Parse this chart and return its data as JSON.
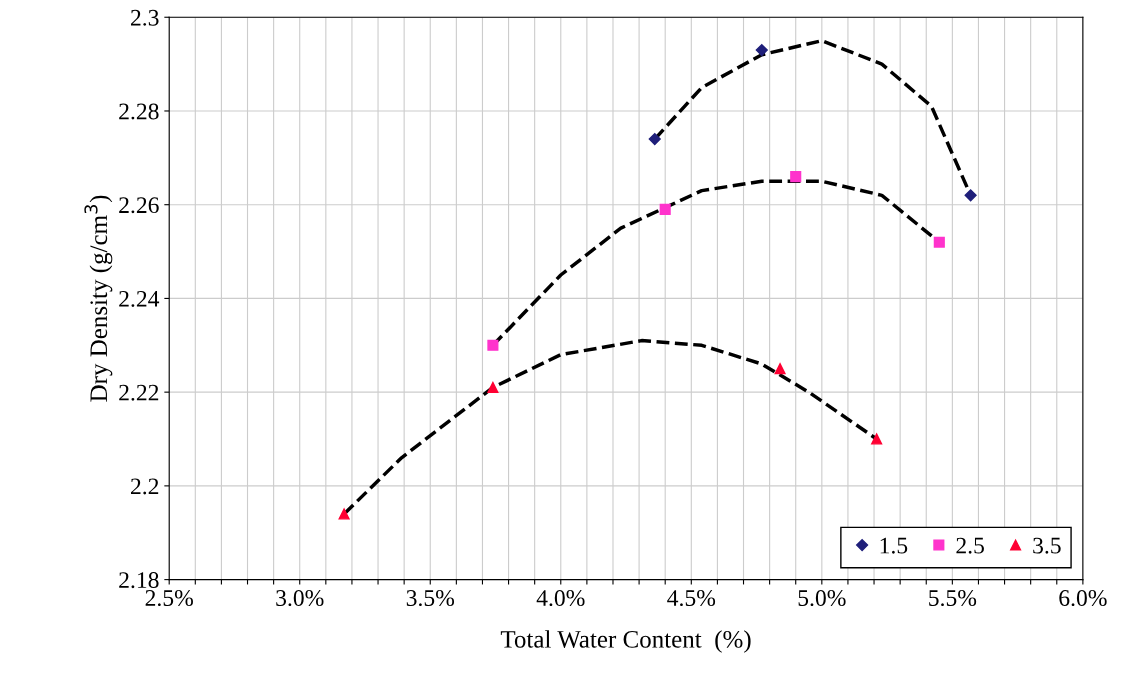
{
  "chart_data": {
    "type": "scatter",
    "xlabel": "Total Water Content  (%)",
    "ylabel": "Dry Density (g/cm$^{3}$)",
    "xlim": [
      2.5,
      6.0
    ],
    "ylim": [
      2.18,
      2.3
    ],
    "xticks": [
      {
        "value": 2.5,
        "label": "2.5%"
      },
      {
        "value": 2.6,
        "label": null
      },
      {
        "value": 2.7,
        "label": null
      },
      {
        "value": 2.8,
        "label": null
      },
      {
        "value": 2.9,
        "label": null
      },
      {
        "value": 3.0,
        "label": "3.0%"
      },
      {
        "value": 3.1,
        "label": null
      },
      {
        "value": 3.2,
        "label": null
      },
      {
        "value": 3.3,
        "label": null
      },
      {
        "value": 3.4,
        "label": null
      },
      {
        "value": 3.5,
        "label": "3.5%"
      },
      {
        "value": 3.6,
        "label": null
      },
      {
        "value": 3.7,
        "label": null
      },
      {
        "value": 3.8,
        "label": null
      },
      {
        "value": 3.9,
        "label": null
      },
      {
        "value": 4.0,
        "label": "4.0%"
      },
      {
        "value": 4.1,
        "label": null
      },
      {
        "value": 4.2,
        "label": null
      },
      {
        "value": 4.3,
        "label": null
      },
      {
        "value": 4.4,
        "label": null
      },
      {
        "value": 4.5,
        "label": "4.5%"
      },
      {
        "value": 4.6,
        "label": null
      },
      {
        "value": 4.7,
        "label": null
      },
      {
        "value": 4.8,
        "label": null
      },
      {
        "value": 4.9,
        "label": null
      },
      {
        "value": 5.0,
        "label": "5.0%"
      },
      {
        "value": 5.1,
        "label": null
      },
      {
        "value": 5.2,
        "label": null
      },
      {
        "value": 5.3,
        "label": null
      },
      {
        "value": 5.4,
        "label": null
      },
      {
        "value": 5.5,
        "label": "5.5%"
      },
      {
        "value": 5.6,
        "label": null
      },
      {
        "value": 5.7,
        "label": null
      },
      {
        "value": 5.8,
        "label": null
      },
      {
        "value": 5.9,
        "label": null
      },
      {
        "value": 6.0,
        "label": "6.0%"
      }
    ],
    "yticks": [
      2.18,
      2.2,
      2.22,
      2.24,
      2.26,
      2.28,
      2.3
    ],
    "grid": true,
    "legend": "bottom right",
    "series": [
      {
        "name": "1.5",
        "marker": "diamond",
        "color": "#1f1f7a",
        "x": [
          4.36,
          4.77,
          5.57
        ],
        "values": [
          2.274,
          2.293,
          2.262
        ]
      },
      {
        "name": "2.5",
        "marker": "square",
        "color": "#ff33cc",
        "x": [
          3.74,
          4.4,
          4.9,
          5.45
        ],
        "values": [
          2.23,
          2.259,
          2.266,
          2.252
        ]
      },
      {
        "name": "3.5",
        "marker": "triangle",
        "color": "#ff0033",
        "x": [
          3.17,
          3.74,
          4.84,
          5.21
        ],
        "values": [
          2.194,
          2.221,
          2.225,
          2.21
        ]
      },
      {
        "type": "line",
        "line_style": "dashed",
        "color": "#000000",
        "x": [
          4.36,
          4.54,
          4.77,
          5.0,
          5.23,
          5.42,
          5.57
        ],
        "values": [
          2.274,
          2.285,
          2.292,
          2.295,
          2.29,
          2.281,
          2.262
        ]
      },
      {
        "type": "line",
        "line_style": "dashed",
        "color": "#000000",
        "x": [
          3.74,
          4.0,
          4.23,
          4.54,
          4.77,
          5.0,
          5.23,
          5.45
        ],
        "values": [
          2.23,
          2.245,
          2.255,
          2.263,
          2.265,
          2.265,
          2.262,
          2.252
        ]
      },
      {
        "type": "line",
        "line_style": "dashed",
        "color": "#000000",
        "x": [
          3.17,
          3.39,
          3.74,
          4.0,
          4.31,
          4.54,
          4.77,
          4.95,
          5.21
        ],
        "values": [
          2.194,
          2.206,
          2.221,
          2.228,
          2.231,
          2.23,
          2.226,
          2.22,
          2.21
        ]
      }
    ]
  }
}
